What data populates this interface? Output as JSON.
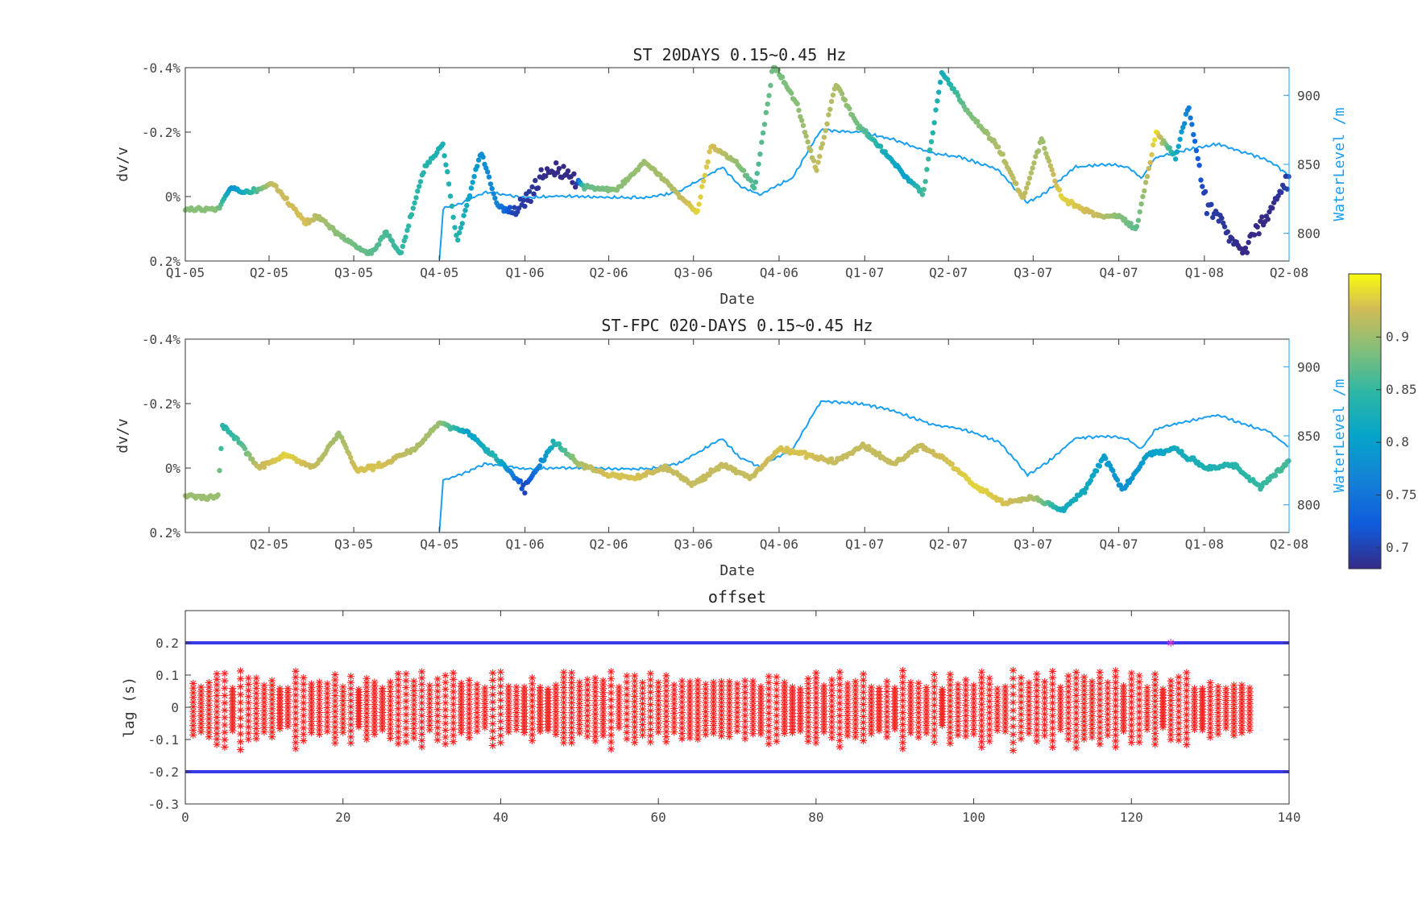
{
  "chart_data": [
    {
      "type": "scatter",
      "title": "ST 20DAYS 0.15~0.45 Hz",
      "xlabel": "Date",
      "ylabel": "dv/v",
      "y2label": "WaterLevel /m",
      "x_ticks": [
        "Q1-05",
        "Q2-05",
        "Q3-05",
        "Q4-05",
        "Q1-06",
        "Q2-06",
        "Q3-06",
        "Q4-06",
        "Q1-07",
        "Q2-07",
        "Q3-07",
        "Q4-07",
        "Q1-08",
        "Q2-08"
      ],
      "y_ticks": [
        "-0.4%",
        "-0.2%",
        "0%",
        "0.2%"
      ],
      "y_direction": "reversed",
      "y2_ticks": [
        "800",
        "850",
        "900"
      ],
      "y2_range": [
        780,
        920
      ],
      "ylim": [
        -0.4,
        0.2
      ],
      "x_range": [
        "2005-01-01",
        "2008-04-01"
      ],
      "colormap": "parula",
      "series": [
        {
          "name": "dv/v",
          "anchors": [
            [
              "2005-01-01",
              0.04,
              0.89
            ],
            [
              "2005-02-05",
              0.04,
              0.89
            ],
            [
              "2005-02-20",
              -0.03,
              0.78
            ],
            [
              "2005-03-05",
              -0.01,
              0.82
            ],
            [
              "2005-04-05",
              -0.04,
              0.92
            ],
            [
              "2005-05-10",
              0.08,
              0.93
            ],
            [
              "2005-05-25",
              0.06,
              0.91
            ],
            [
              "2005-06-15",
              0.12,
              0.89
            ],
            [
              "2005-06-30",
              0.15,
              0.88
            ],
            [
              "2005-07-20",
              0.18,
              0.87
            ],
            [
              "2005-08-05",
              0.11,
              0.86
            ],
            [
              "2005-08-20",
              0.18,
              0.85
            ],
            [
              "2005-09-15",
              -0.09,
              0.84
            ],
            [
              "2005-10-05",
              -0.16,
              0.83
            ],
            [
              "2005-10-20",
              0.14,
              0.84
            ],
            [
              "2005-11-15",
              -0.14,
              0.78
            ],
            [
              "2005-12-01",
              0.02,
              0.77
            ],
            [
              "2005-12-20",
              0.06,
              0.7
            ],
            [
              "2006-01-25",
              -0.08,
              0.68
            ],
            [
              "2006-02-25",
              -0.06,
              0.68
            ],
            [
              "2006-03-05",
              -0.03,
              0.87
            ],
            [
              "2006-04-10",
              -0.02,
              0.89
            ],
            [
              "2006-05-10",
              -0.11,
              0.9
            ],
            [
              "2006-06-10",
              -0.02,
              0.91
            ],
            [
              "2006-07-05",
              0.05,
              0.94
            ],
            [
              "2006-07-20",
              -0.16,
              0.93
            ],
            [
              "2006-08-15",
              -0.11,
              0.9
            ],
            [
              "2006-09-05",
              -0.03,
              0.86
            ],
            [
              "2006-09-25",
              -0.41,
              0.88
            ],
            [
              "2006-10-20",
              -0.29,
              0.89
            ],
            [
              "2006-11-10",
              -0.08,
              0.92
            ],
            [
              "2006-12-01",
              -0.35,
              0.91
            ],
            [
              "2006-12-25",
              -0.22,
              0.88
            ],
            [
              "2007-01-25",
              -0.13,
              0.82
            ],
            [
              "2007-02-15",
              -0.06,
              0.8
            ],
            [
              "2007-03-05",
              -0.01,
              0.86
            ],
            [
              "2007-03-25",
              -0.39,
              0.82
            ],
            [
              "2007-04-20",
              -0.27,
              0.88
            ],
            [
              "2007-05-25",
              -0.15,
              0.91
            ],
            [
              "2007-06-20",
              0.01,
              0.92
            ],
            [
              "2007-07-10",
              -0.18,
              0.9
            ],
            [
              "2007-08-01",
              0.01,
              0.94
            ],
            [
              "2007-09-10",
              0.06,
              0.92
            ],
            [
              "2007-10-01",
              0.06,
              0.89
            ],
            [
              "2007-10-20",
              0.1,
              0.87
            ],
            [
              "2007-11-10",
              -0.2,
              0.95
            ],
            [
              "2007-12-01",
              -0.12,
              0.82
            ],
            [
              "2007-12-15",
              -0.28,
              0.76
            ],
            [
              "2008-01-01",
              0.0,
              0.7
            ],
            [
              "2008-02-10",
              0.18,
              0.68
            ],
            [
              "2008-03-15",
              0.02,
              0.68
            ],
            [
              "2008-04-01",
              -0.05,
              0.7
            ]
          ]
        },
        {
          "name": "WaterLevel",
          "anchors": [
            [
              "2005-10-01",
              780
            ],
            [
              "2005-10-05",
              818
            ],
            [
              "2005-10-25",
              822
            ],
            [
              "2005-11-20",
              830
            ],
            [
              "2005-12-30",
              826
            ],
            [
              "2006-02-15",
              827
            ],
            [
              "2006-04-01",
              826
            ],
            [
              "2006-05-15",
              826
            ],
            [
              "2006-06-15",
              830
            ],
            [
              "2006-08-01",
              848
            ],
            [
              "2006-08-20",
              834
            ],
            [
              "2006-09-10",
              828
            ],
            [
              "2006-10-15",
              840
            ],
            [
              "2006-11-15",
              875
            ],
            [
              "2006-12-30",
              873
            ],
            [
              "2007-02-01",
              868
            ],
            [
              "2007-03-15",
              858
            ],
            [
              "2007-04-15",
              855
            ],
            [
              "2007-05-25",
              846
            ],
            [
              "2007-06-25",
              822
            ],
            [
              "2007-07-15",
              830
            ],
            [
              "2007-08-15",
              848
            ],
            [
              "2007-09-20",
              850
            ],
            [
              "2007-10-10",
              848
            ],
            [
              "2007-10-25",
              840
            ],
            [
              "2007-11-10",
              855
            ],
            [
              "2007-12-10",
              860
            ],
            [
              "2008-01-15",
              865
            ],
            [
              "2008-02-15",
              858
            ],
            [
              "2008-03-10",
              853
            ],
            [
              "2008-04-01",
              842
            ]
          ]
        }
      ]
    },
    {
      "type": "scatter",
      "title": "ST-FPC  020-DAYS 0.15~0.45 Hz",
      "xlabel": "Date",
      "ylabel": "dv/v",
      "y2label": "WaterLevel /m",
      "x_ticks": [
        "Q2-05",
        "Q3-05",
        "Q4-05",
        "Q1-06",
        "Q2-06",
        "Q3-06",
        "Q4-06",
        "Q1-07",
        "Q2-07",
        "Q3-07",
        "Q4-07",
        "Q1-08",
        "Q2-08"
      ],
      "y_ticks": [
        "-0.4%",
        "-0.2%",
        "0%",
        "0.2%"
      ],
      "y_direction": "reversed",
      "y2_ticks": [
        "800",
        "850",
        "900"
      ],
      "y2_range": [
        780,
        920
      ],
      "ylim": [
        -0.4,
        0.2
      ],
      "x_range": [
        "2005-01-01",
        "2008-04-01"
      ],
      "colormap": "parula",
      "series": [
        {
          "name": "dv/v",
          "anchors": [
            [
              "2005-01-01",
              0.09,
              0.9
            ],
            [
              "2005-02-05",
              0.09,
              0.9
            ],
            [
              "2005-02-10",
              -0.13,
              0.84
            ],
            [
              "2005-03-01",
              -0.08,
              0.86
            ],
            [
              "2005-03-20",
              0.0,
              0.92
            ],
            [
              "2005-04-20",
              -0.04,
              0.94
            ],
            [
              "2005-05-20",
              0.0,
              0.92
            ],
            [
              "2005-06-15",
              -0.11,
              0.9
            ],
            [
              "2005-07-05",
              0.01,
              0.93
            ],
            [
              "2005-08-01",
              -0.01,
              0.93
            ],
            [
              "2005-09-05",
              -0.06,
              0.91
            ],
            [
              "2005-10-01",
              -0.14,
              0.9
            ],
            [
              "2005-11-01",
              -0.11,
              0.8
            ],
            [
              "2005-12-01",
              -0.03,
              0.84
            ],
            [
              "2006-01-01",
              0.06,
              0.7
            ],
            [
              "2006-02-01",
              -0.08,
              0.83
            ],
            [
              "2006-03-01",
              -0.01,
              0.91
            ],
            [
              "2006-04-01",
              0.02,
              0.93
            ],
            [
              "2006-05-01",
              0.03,
              0.93
            ],
            [
              "2006-06-01",
              0.0,
              0.92
            ],
            [
              "2006-07-01",
              0.05,
              0.92
            ],
            [
              "2006-08-01",
              -0.01,
              0.92
            ],
            [
              "2006-09-01",
              0.03,
              0.92
            ],
            [
              "2006-10-01",
              -0.06,
              0.93
            ],
            [
              "2006-11-01",
              -0.04,
              0.93
            ],
            [
              "2006-12-01",
              -0.02,
              0.92
            ],
            [
              "2007-01-01",
              -0.07,
              0.92
            ],
            [
              "2007-02-01",
              -0.01,
              0.92
            ],
            [
              "2007-03-01",
              -0.07,
              0.92
            ],
            [
              "2007-04-01",
              -0.02,
              0.93
            ],
            [
              "2007-05-01",
              0.06,
              0.94
            ],
            [
              "2007-06-01",
              0.11,
              0.93
            ],
            [
              "2007-07-01",
              0.09,
              0.91
            ],
            [
              "2007-08-01",
              0.13,
              0.82
            ],
            [
              "2007-08-25",
              0.07,
              0.82
            ],
            [
              "2007-09-15",
              -0.04,
              0.8
            ],
            [
              "2007-10-05",
              0.07,
              0.78
            ],
            [
              "2007-11-01",
              -0.04,
              0.8
            ],
            [
              "2007-12-01",
              -0.06,
              0.82
            ],
            [
              "2008-01-01",
              0.0,
              0.83
            ],
            [
              "2008-02-01",
              -0.01,
              0.84
            ],
            [
              "2008-03-01",
              0.06,
              0.85
            ],
            [
              "2008-04-01",
              -0.02,
              0.86
            ]
          ]
        },
        {
          "name": "WaterLevel",
          "anchors": [
            [
              "2005-10-01",
              780
            ],
            [
              "2005-10-05",
              818
            ],
            [
              "2005-10-25",
              822
            ],
            [
              "2005-11-20",
              830
            ],
            [
              "2005-12-30",
              826
            ],
            [
              "2006-02-15",
              827
            ],
            [
              "2006-04-01",
              826
            ],
            [
              "2006-05-15",
              826
            ],
            [
              "2006-06-15",
              830
            ],
            [
              "2006-08-01",
              848
            ],
            [
              "2006-08-20",
              834
            ],
            [
              "2006-09-10",
              828
            ],
            [
              "2006-10-15",
              840
            ],
            [
              "2006-11-15",
              875
            ],
            [
              "2006-12-30",
              873
            ],
            [
              "2007-02-01",
              868
            ],
            [
              "2007-03-15",
              858
            ],
            [
              "2007-04-15",
              855
            ],
            [
              "2007-05-25",
              846
            ],
            [
              "2007-06-25",
              822
            ],
            [
              "2007-07-15",
              830
            ],
            [
              "2007-08-15",
              848
            ],
            [
              "2007-09-20",
              850
            ],
            [
              "2007-10-10",
              848
            ],
            [
              "2007-10-25",
              840
            ],
            [
              "2007-11-10",
              855
            ],
            [
              "2007-12-10",
              860
            ],
            [
              "2008-01-15",
              865
            ],
            [
              "2008-02-15",
              858
            ],
            [
              "2008-03-10",
              853
            ],
            [
              "2008-04-01",
              842
            ]
          ]
        }
      ]
    },
    {
      "type": "scatter",
      "title": "offset",
      "xlabel": "",
      "ylabel": "lag (s)",
      "xlim": [
        0,
        140
      ],
      "ylim": [
        -0.3,
        0.3
      ],
      "x_ticks": [
        "0",
        "20",
        "40",
        "60",
        "80",
        "100",
        "120",
        "140"
      ],
      "y_ticks": [
        "0.2",
        "0.1",
        "0",
        "-0.1",
        "-0.2",
        "-0.3"
      ],
      "threshold_lines": [
        0.2,
        -0.2
      ],
      "marker": "*",
      "x_count": 135,
      "outlier": [
        125,
        0.2
      ]
    }
  ],
  "colorbar": {
    "tick_labels": [
      "0.9",
      "0.85",
      "0.8",
      "0.75",
      "0.7"
    ],
    "range": [
      0.68,
      0.96
    ]
  },
  "colors": {
    "waterlevel": "#1a9ff0",
    "offset_marker": "#ff2020",
    "threshold": "#3a3ae8",
    "outlier": "#cc33cc"
  }
}
